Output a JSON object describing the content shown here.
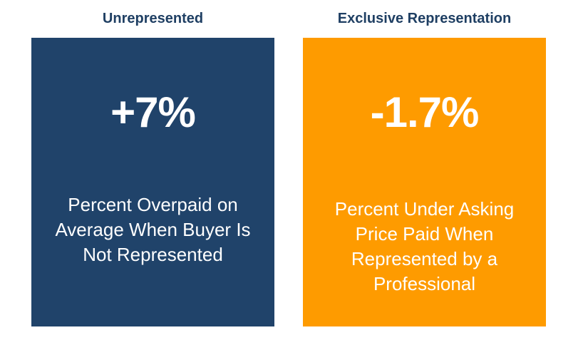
{
  "cards": {
    "unrepresented": {
      "heading": "Unrepresented",
      "stat": "+7%",
      "description": "Percent Overpaid on Average When Buyer Is Not Represented",
      "color": "#20436a"
    },
    "exclusive": {
      "heading": "Exclusive Representation",
      "stat": "-1.7%",
      "description": "Percent Under Asking Price Paid When Represented by a Professional",
      "color": "#fe9b00"
    }
  },
  "colors": {
    "heading_text": "#1f3f63",
    "card_text": "#ffffff",
    "background": "#ffffff"
  }
}
